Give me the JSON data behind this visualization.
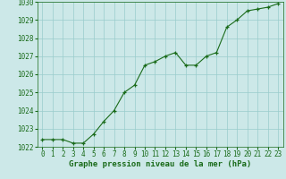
{
  "x": [
    0,
    1,
    2,
    3,
    4,
    5,
    6,
    7,
    8,
    9,
    10,
    11,
    12,
    13,
    14,
    15,
    16,
    17,
    18,
    19,
    20,
    21,
    22,
    23
  ],
  "y": [
    1022.4,
    1022.4,
    1022.4,
    1022.2,
    1022.2,
    1022.7,
    1023.4,
    1024.0,
    1025.0,
    1025.4,
    1026.5,
    1026.7,
    1027.0,
    1027.2,
    1026.5,
    1026.5,
    1027.0,
    1027.2,
    1028.6,
    1029.0,
    1029.5,
    1029.6,
    1029.7,
    1029.9
  ],
  "ylim": [
    1022,
    1030
  ],
  "yticks": [
    1022,
    1023,
    1024,
    1025,
    1026,
    1027,
    1028,
    1029,
    1030
  ],
  "xticks": [
    0,
    1,
    2,
    3,
    4,
    5,
    6,
    7,
    8,
    9,
    10,
    11,
    12,
    13,
    14,
    15,
    16,
    17,
    18,
    19,
    20,
    21,
    22,
    23
  ],
  "line_color": "#1a6b1a",
  "marker_color": "#1a6b1a",
  "bg_color": "#cce8e8",
  "grid_color": "#99cccc",
  "xlabel": "Graphe pression niveau de la mer (hPa)",
  "xlabel_color": "#1a6b1a",
  "tick_color": "#1a6b1a",
  "font_size_label": 6.5,
  "font_size_tick": 5.5
}
